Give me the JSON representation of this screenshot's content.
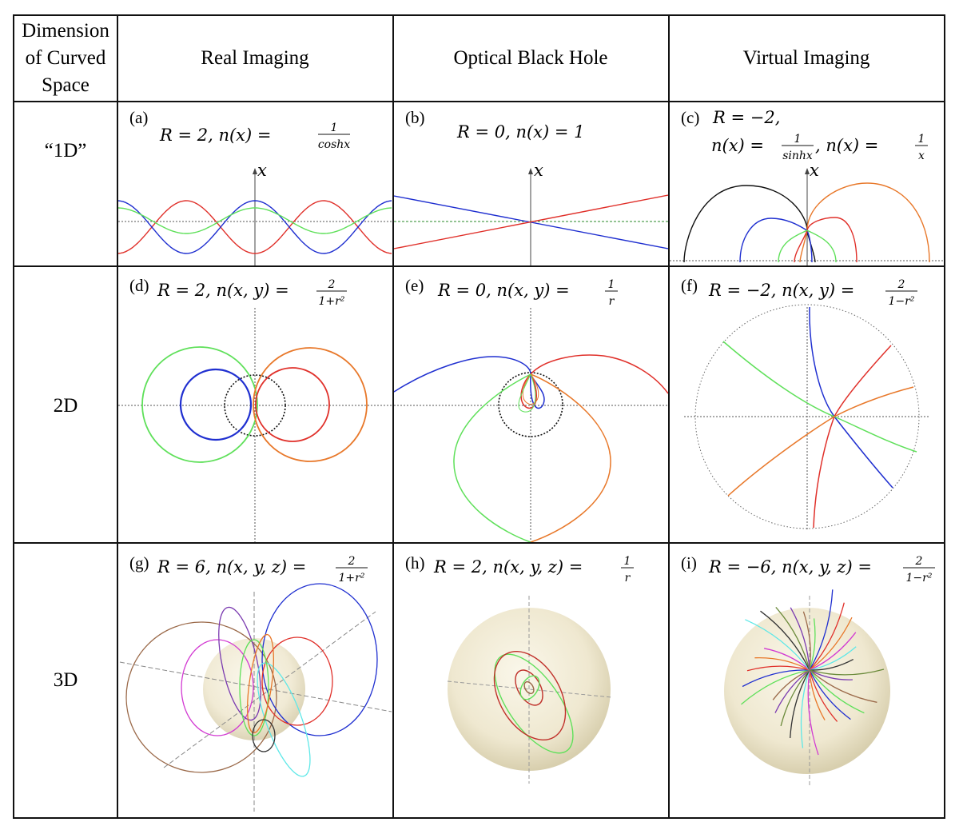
{
  "header": {
    "col0": [
      "Dimension",
      "of Curved",
      "Space"
    ],
    "col1": "Real Imaging",
    "col2": "Optical Black Hole",
    "col3": "Virtual Imaging"
  },
  "rows": [
    {
      "label": "“1D”"
    },
    {
      "label": "2D"
    },
    {
      "label": "3D"
    }
  ],
  "panels": {
    "a": {
      "tag": "(a)",
      "formula": "R = 2, n(x) = ",
      "frac_num": "1",
      "frac_den": "coshx"
    },
    "b": {
      "tag": "(b)",
      "formula": "R = 0, n(x) = 1"
    },
    "c": {
      "tag": "(c)",
      "line1": "R = −2,",
      "line2a": "n(x) = ",
      "frac1_num": "1",
      "frac1_den": "sinhx",
      "line2b": ", n(x) = ",
      "frac2_num": "1",
      "frac2_den": "x"
    },
    "d": {
      "tag": "(d)",
      "formula": "R = 2, n(x, y) = ",
      "frac_num": "2",
      "frac_den": "1+r²"
    },
    "e": {
      "tag": "(e)",
      "formula": "R = 0, n(x, y) = ",
      "frac_num": "1",
      "frac_den": "r"
    },
    "f": {
      "tag": "(f)",
      "formula": "R = −2, n(x, y) = ",
      "frac_num": "2",
      "frac_den": "1−r²"
    },
    "g": {
      "tag": "(g)",
      "formula": "R = 6, n(x, y, z) = ",
      "frac_num": "2",
      "frac_den": "1+r²"
    },
    "h": {
      "tag": "(h)",
      "formula": "R = 2, n(x, y, z) = ",
      "frac_num": "1",
      "frac_den": "r"
    },
    "i": {
      "tag": "(i)",
      "formula": "R = −6, n(x, y, z) = ",
      "frac_num": "2",
      "frac_den": "1−r²"
    }
  },
  "axis_label_x": "x",
  "colors": {
    "red": "#e0302a",
    "blue": "#1f2fd0",
    "green": "#5fe05a",
    "orange": "#e8782a",
    "black": "#111111",
    "cyan": "#5fe8e8",
    "magenta": "#d23ad2",
    "brown": "#9b6a4a",
    "purple": "#7a3ab0"
  }
}
